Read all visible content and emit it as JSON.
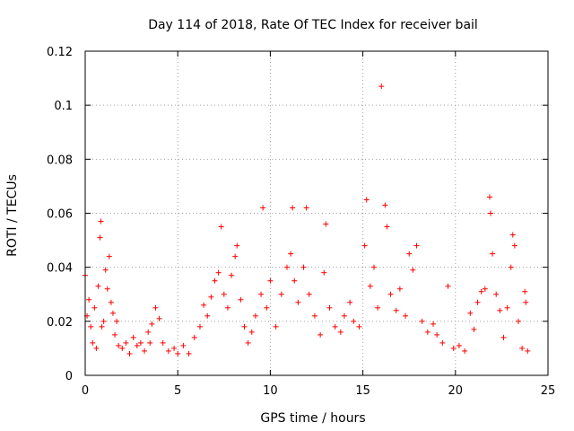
{
  "chart_data": {
    "type": "scatter",
    "title": "Day 114 of 2018, Rate Of TEC Index for receiver bail",
    "xlabel": "GPS time / hours",
    "ylabel": "ROTI / TECUs",
    "xlim": [
      0,
      25
    ],
    "ylim": [
      0,
      0.12
    ],
    "xticks": [
      0,
      5,
      10,
      15,
      20,
      25
    ],
    "xtick_labels": [
      "0",
      "5",
      "10",
      "15",
      "20",
      "25"
    ],
    "yticks": [
      0,
      0.02,
      0.04,
      0.06,
      0.08,
      0.1,
      0.12
    ],
    "ytick_labels": [
      "0",
      "0.02",
      "0.04",
      "0.06",
      "0.08",
      "0.1",
      "0.12"
    ],
    "grid": true,
    "marker": "plus",
    "color": "#ff0000",
    "series": [
      {
        "name": "ROTI",
        "points": [
          [
            0.0,
            0.037
          ],
          [
            0.1,
            0.022
          ],
          [
            0.2,
            0.028
          ],
          [
            0.3,
            0.018
          ],
          [
            0.4,
            0.012
          ],
          [
            0.5,
            0.025
          ],
          [
            0.6,
            0.01
          ],
          [
            0.7,
            0.033
          ],
          [
            0.8,
            0.051
          ],
          [
            0.85,
            0.057
          ],
          [
            0.9,
            0.018
          ],
          [
            1.0,
            0.02
          ],
          [
            1.1,
            0.039
          ],
          [
            1.2,
            0.032
          ],
          [
            1.3,
            0.044
          ],
          [
            1.4,
            0.027
          ],
          [
            1.5,
            0.023
          ],
          [
            1.6,
            0.015
          ],
          [
            1.7,
            0.02
          ],
          [
            1.8,
            0.011
          ],
          [
            2.0,
            0.01
          ],
          [
            2.2,
            0.012
          ],
          [
            2.4,
            0.008
          ],
          [
            2.6,
            0.014
          ],
          [
            2.8,
            0.011
          ],
          [
            3.0,
            0.012
          ],
          [
            3.2,
            0.009
          ],
          [
            3.4,
            0.016
          ],
          [
            3.5,
            0.012
          ],
          [
            3.6,
            0.019
          ],
          [
            3.8,
            0.025
          ],
          [
            4.0,
            0.021
          ],
          [
            4.2,
            0.012
          ],
          [
            4.5,
            0.009
          ],
          [
            4.8,
            0.01
          ],
          [
            5.0,
            0.008
          ],
          [
            5.3,
            0.011
          ],
          [
            5.6,
            0.008
          ],
          [
            5.9,
            0.014
          ],
          [
            6.2,
            0.018
          ],
          [
            6.4,
            0.026
          ],
          [
            6.6,
            0.022
          ],
          [
            6.8,
            0.029
          ],
          [
            7.0,
            0.035
          ],
          [
            7.2,
            0.038
          ],
          [
            7.35,
            0.055
          ],
          [
            7.5,
            0.03
          ],
          [
            7.7,
            0.025
          ],
          [
            7.9,
            0.037
          ],
          [
            8.1,
            0.044
          ],
          [
            8.2,
            0.048
          ],
          [
            8.4,
            0.028
          ],
          [
            8.6,
            0.018
          ],
          [
            8.8,
            0.012
          ],
          [
            9.0,
            0.016
          ],
          [
            9.2,
            0.022
          ],
          [
            9.5,
            0.03
          ],
          [
            9.6,
            0.062
          ],
          [
            9.8,
            0.025
          ],
          [
            10.0,
            0.035
          ],
          [
            10.3,
            0.018
          ],
          [
            10.6,
            0.03
          ],
          [
            10.9,
            0.04
          ],
          [
            11.1,
            0.045
          ],
          [
            11.2,
            0.062
          ],
          [
            11.3,
            0.035
          ],
          [
            11.5,
            0.027
          ],
          [
            11.8,
            0.04
          ],
          [
            11.95,
            0.062
          ],
          [
            12.1,
            0.03
          ],
          [
            12.4,
            0.022
          ],
          [
            12.7,
            0.015
          ],
          [
            12.9,
            0.038
          ],
          [
            13.0,
            0.056
          ],
          [
            13.2,
            0.025
          ],
          [
            13.5,
            0.018
          ],
          [
            13.8,
            0.016
          ],
          [
            14.0,
            0.022
          ],
          [
            14.3,
            0.027
          ],
          [
            14.5,
            0.02
          ],
          [
            14.8,
            0.018
          ],
          [
            15.1,
            0.048
          ],
          [
            15.2,
            0.065
          ],
          [
            15.4,
            0.033
          ],
          [
            15.6,
            0.04
          ],
          [
            15.8,
            0.025
          ],
          [
            16.0,
            0.107
          ],
          [
            16.2,
            0.063
          ],
          [
            16.3,
            0.055
          ],
          [
            16.5,
            0.03
          ],
          [
            16.8,
            0.024
          ],
          [
            17.0,
            0.032
          ],
          [
            17.3,
            0.022
          ],
          [
            17.5,
            0.045
          ],
          [
            17.7,
            0.039
          ],
          [
            17.9,
            0.048
          ],
          [
            18.2,
            0.02
          ],
          [
            18.5,
            0.016
          ],
          [
            18.8,
            0.019
          ],
          [
            19.0,
            0.015
          ],
          [
            19.3,
            0.012
          ],
          [
            19.6,
            0.033
          ],
          [
            19.9,
            0.01
          ],
          [
            20.2,
            0.011
          ],
          [
            20.5,
            0.009
          ],
          [
            20.8,
            0.023
          ],
          [
            21.0,
            0.017
          ],
          [
            21.2,
            0.027
          ],
          [
            21.4,
            0.031
          ],
          [
            21.6,
            0.032
          ],
          [
            21.85,
            0.066
          ],
          [
            21.9,
            0.06
          ],
          [
            22.0,
            0.045
          ],
          [
            22.2,
            0.03
          ],
          [
            22.4,
            0.024
          ],
          [
            22.6,
            0.014
          ],
          [
            22.8,
            0.025
          ],
          [
            23.0,
            0.04
          ],
          [
            23.1,
            0.052
          ],
          [
            23.2,
            0.048
          ],
          [
            23.4,
            0.02
          ],
          [
            23.6,
            0.01
          ],
          [
            23.75,
            0.031
          ],
          [
            23.8,
            0.027
          ],
          [
            23.9,
            0.009
          ]
        ]
      }
    ]
  }
}
